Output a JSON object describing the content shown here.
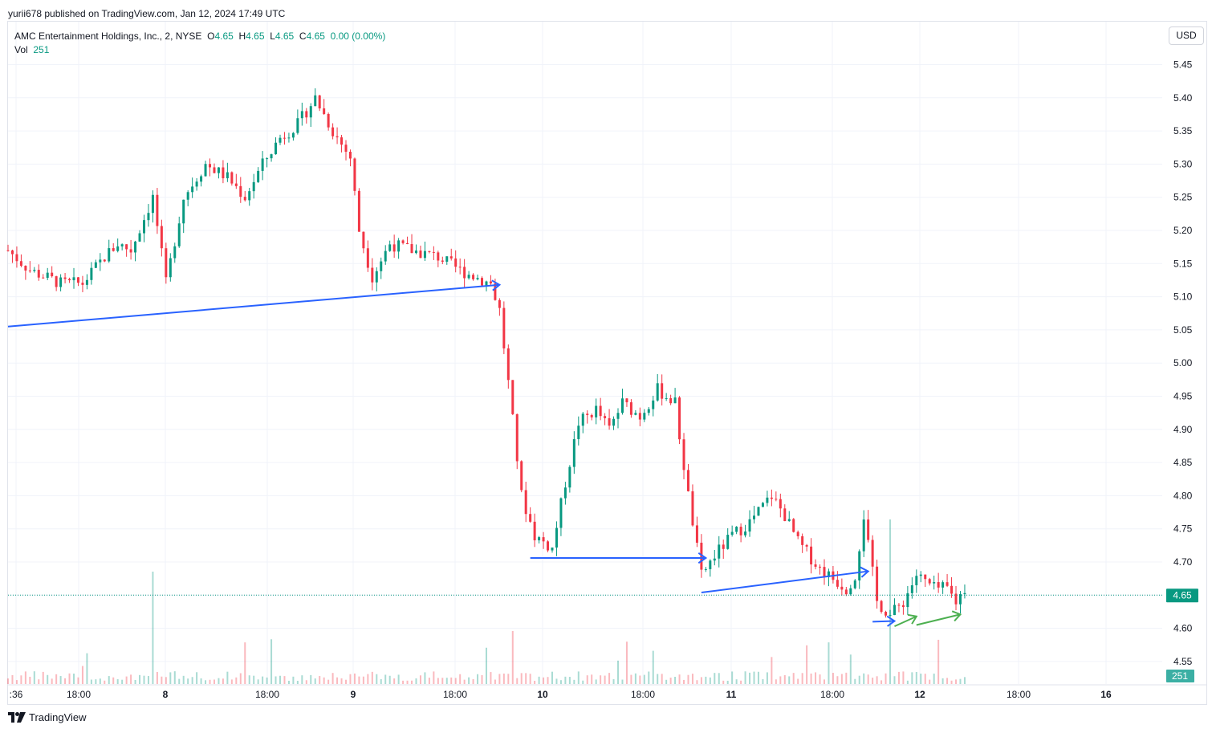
{
  "header": {
    "published": "yurii678 published on TradingView.com, Jan 12, 2024 17:49 UTC"
  },
  "legend": {
    "symbol": "AMC Entertainment Holdings, Inc., 2, NYSE",
    "o_label": "O",
    "o_value": "4.65",
    "h_label": "H",
    "h_value": "4.65",
    "l_label": "L",
    "l_value": "4.65",
    "c_label": "C",
    "c_value": "4.65",
    "change": "0.00 (0.00%)",
    "vol_label": "Vol",
    "vol_value": "251"
  },
  "currency_button": "USD",
  "brand": {
    "name": "TradingView",
    "logo_icon": "tradingview-logo-icon"
  },
  "chart_data": {
    "type": "candlestick",
    "symbol": "AMC",
    "interval": "2",
    "currency": "USD",
    "ylim": [
      4.52,
      5.47
    ],
    "y_ticks": [
      "5.45",
      "5.40",
      "5.35",
      "5.30",
      "5.25",
      "5.20",
      "5.15",
      "5.10",
      "5.05",
      "5.00",
      "4.95",
      "4.90",
      "4.85",
      "4.80",
      "4.75",
      "4.70",
      "4.65",
      "4.60",
      "4.55"
    ],
    "x_ticks": [
      ":36",
      "18:00",
      "8",
      "18:00",
      "9",
      "18:00",
      "10",
      "18:00",
      "11",
      "18:00",
      "12",
      "18:00",
      "16"
    ],
    "current_price": {
      "value": 4.65,
      "label": "4.65"
    },
    "current_volume": {
      "value": 251,
      "label": "251"
    },
    "price_path": [
      [
        0,
        5.17
      ],
      [
        5,
        5.14
      ],
      [
        12,
        5.12
      ],
      [
        17,
        5.12
      ],
      [
        22,
        5.16
      ],
      [
        25,
        5.18
      ],
      [
        28,
        5.17
      ],
      [
        33,
        5.25
      ],
      [
        36,
        5.12
      ],
      [
        40,
        5.25
      ],
      [
        45,
        5.3
      ],
      [
        50,
        5.28
      ],
      [
        54,
        5.25
      ],
      [
        58,
        5.3
      ],
      [
        62,
        5.34
      ],
      [
        66,
        5.36
      ],
      [
        70,
        5.4
      ],
      [
        74,
        5.35
      ],
      [
        78,
        5.31
      ],
      [
        80,
        5.2
      ],
      [
        83,
        5.13
      ],
      [
        87,
        5.18
      ],
      [
        92,
        5.17
      ],
      [
        98,
        5.16
      ],
      [
        103,
        5.14
      ],
      [
        110,
        5.12
      ],
      [
        112,
        5.08
      ],
      [
        114,
        4.97
      ],
      [
        117,
        4.8
      ],
      [
        120,
        4.74
      ],
      [
        124,
        4.72
      ],
      [
        127,
        4.82
      ],
      [
        130,
        4.91
      ],
      [
        134,
        4.93
      ],
      [
        137,
        4.9
      ],
      [
        140,
        4.94
      ],
      [
        144,
        4.92
      ],
      [
        148,
        4.96
      ],
      [
        152,
        4.94
      ],
      [
        153,
        4.89
      ],
      [
        155,
        4.8
      ],
      [
        158,
        4.68
      ],
      [
        161,
        4.71
      ],
      [
        165,
        4.74
      ],
      [
        169,
        4.76
      ],
      [
        174,
        4.8
      ],
      [
        177,
        4.77
      ],
      [
        180,
        4.73
      ],
      [
        185,
        4.69
      ],
      [
        189,
        4.67
      ],
      [
        191,
        4.66
      ],
      [
        193,
        4.68
      ],
      [
        195,
        4.77
      ],
      [
        198,
        4.64
      ],
      [
        201,
        4.62
      ],
      [
        204,
        4.64
      ],
      [
        207,
        4.68
      ],
      [
        211,
        4.66
      ],
      [
        214,
        4.66
      ],
      [
        216,
        4.64
      ],
      [
        218,
        4.66
      ]
    ],
    "annotations": [
      {
        "type": "arrow",
        "color": "#2962ff",
        "from": [
          0,
          5.055
        ],
        "to": [
          112,
          5.118
        ]
      },
      {
        "type": "arrow",
        "color": "#2962ff",
        "from": [
          119,
          4.706
        ],
        "to": [
          159,
          4.706
        ]
      },
      {
        "type": "arrow",
        "color": "#2962ff",
        "from": [
          158,
          4.654
        ],
        "to": [
          196,
          4.686
        ]
      },
      {
        "type": "arrow",
        "color": "#2962ff",
        "from": [
          197,
          4.61
        ],
        "to": [
          202,
          4.611
        ]
      },
      {
        "type": "arrow",
        "color": "#4caf50",
        "from": [
          202,
          4.603
        ],
        "to": [
          207,
          4.618
        ]
      },
      {
        "type": "arrow",
        "color": "#4caf50",
        "from": [
          207,
          4.605
        ],
        "to": [
          217,
          4.621
        ]
      }
    ],
    "colors": {
      "up": "#089981",
      "down": "#f23645",
      "grid": "#f0f3fa",
      "price_line": "#089981",
      "arrow_blue": "#2962ff",
      "arrow_green": "#4caf50"
    }
  }
}
